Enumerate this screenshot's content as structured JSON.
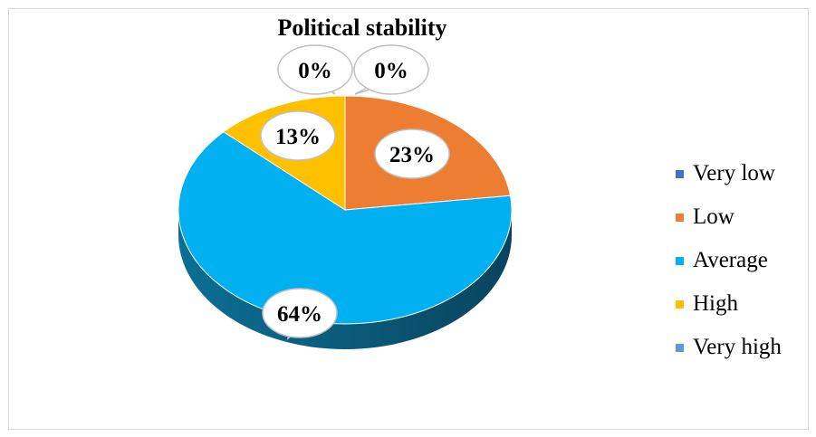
{
  "chart_data": {
    "type": "pie",
    "title": "Political stability",
    "categories": [
      "Very low",
      "Low",
      "Average",
      "High",
      "Very high"
    ],
    "values": [
      0,
      23,
      64,
      13,
      0
    ],
    "data_labels": [
      "0%",
      "23%",
      "64%",
      "13%",
      "0%"
    ],
    "colors": [
      "#4472c4",
      "#ed7d31",
      "#00b0f0",
      "#ffc000",
      "#5b9bd5"
    ],
    "legend_position": "right",
    "style": "3d-pie-with-callout-labels"
  }
}
